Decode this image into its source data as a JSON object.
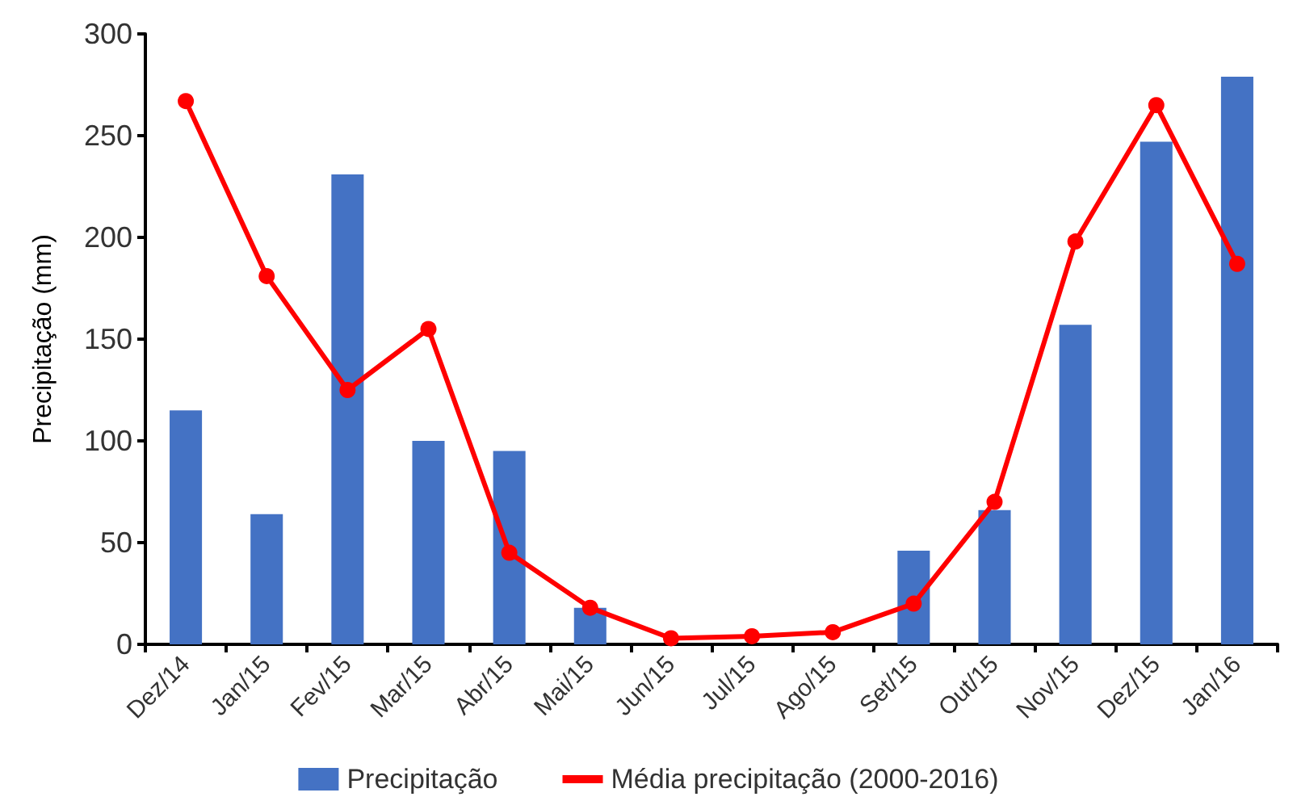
{
  "chart_data": {
    "type": "bar",
    "ylabel": "Precipitação (mm)",
    "categories": [
      "Dez/14",
      "Jan/15",
      "Fev/15",
      "Mar/15",
      "Abr/15",
      "Mai/15",
      "Jun/15",
      "Jul/15",
      "Ago/15",
      "Set/15",
      "Out/15",
      "Nov/15",
      "Dez/15",
      "Jan/16"
    ],
    "series": [
      {
        "name": "Precipitação",
        "color": "#4472c4",
        "values": [
          115,
          64,
          231,
          100,
          95,
          18,
          0,
          0,
          0,
          46,
          66,
          157,
          247,
          279
        ]
      },
      {
        "name": "Média precipitação (2000-2016)",
        "type": "line",
        "color": "#ff0000",
        "marker": "circle",
        "values": [
          267,
          181,
          125,
          155,
          45,
          18,
          3,
          4,
          6,
          20,
          70,
          198,
          265,
          187
        ]
      }
    ],
    "ylim": [
      0,
      300
    ],
    "yticks": [
      0,
      50,
      100,
      150,
      200,
      250,
      300
    ],
    "grid": false,
    "legend": "bottom"
  }
}
